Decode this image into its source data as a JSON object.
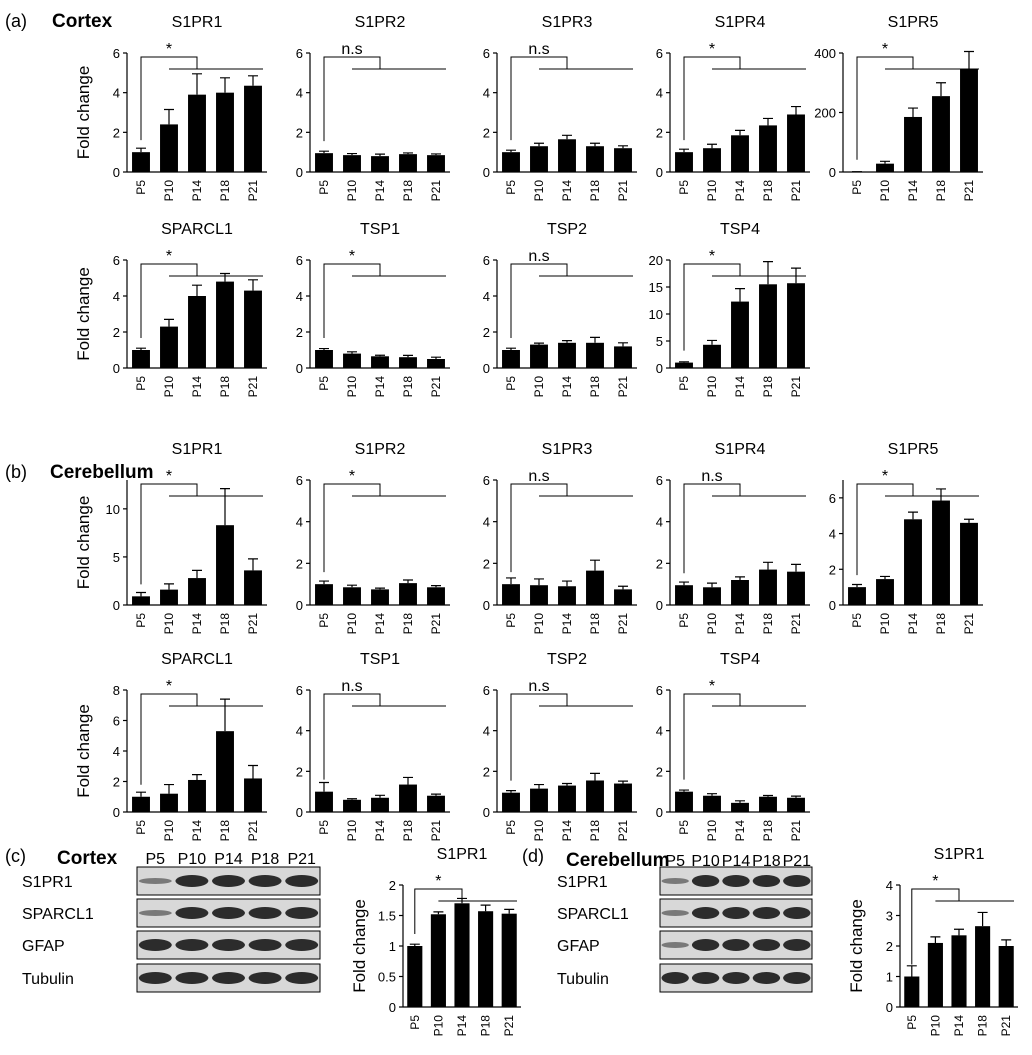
{
  "panels": [
    {
      "label": "(a)",
      "title": "Cortex"
    },
    {
      "label": "(b)",
      "title": "Cerebellum"
    },
    {
      "label": "(c)",
      "title": "Cortex"
    },
    {
      "label": "(d)",
      "title": "Cerebellum"
    }
  ],
  "blots": [
    {
      "lanes": [
        "P5",
        "P10",
        "P14",
        "P18",
        "P21"
      ],
      "rows": [
        "S1PR1",
        "SPARCL1",
        "GFAP",
        "Tubulin"
      ]
    },
    {
      "lanes": [
        "P5",
        "P10",
        "P14",
        "P18",
        "P21"
      ],
      "rows": [
        "S1PR1",
        "SPARCL1",
        "GFAP",
        "Tubulin"
      ]
    }
  ],
  "chart_data": [
    {
      "type": "bar",
      "title": "S1PR1",
      "y_label": "Fold change",
      "significance": "*",
      "categories": [
        "P5",
        "P10",
        "P14",
        "P18",
        "P21"
      ],
      "values": [
        1,
        2.4,
        3.9,
        4.0,
        4.35
      ],
      "errors": [
        0.2,
        0.75,
        1.05,
        0.75,
        0.5
      ],
      "color": "#000000",
      "ylim": [
        0,
        6
      ],
      "yticks": [
        0,
        2,
        4,
        6
      ]
    },
    {
      "type": "bar",
      "title": "S1PR2",
      "significance": "n.s",
      "categories": [
        "P5",
        "P10",
        "P14",
        "P18",
        "P21"
      ],
      "values": [
        0.95,
        0.85,
        0.8,
        0.9,
        0.85
      ],
      "errors": [
        0.1,
        0.08,
        0.1,
        0.06,
        0.06
      ],
      "color": "#000000",
      "ylim": [
        0,
        6
      ],
      "yticks": [
        0,
        2,
        4,
        6
      ]
    },
    {
      "type": "bar",
      "title": "S1PR3",
      "significance": "n.s",
      "categories": [
        "P5",
        "P10",
        "P14",
        "P18",
        "P21"
      ],
      "values": [
        1,
        1.3,
        1.65,
        1.3,
        1.2
      ],
      "errors": [
        0.1,
        0.15,
        0.2,
        0.15,
        0.12
      ],
      "color": "#000000",
      "ylim": [
        0,
        6
      ],
      "yticks": [
        0,
        2,
        4,
        6
      ]
    },
    {
      "type": "bar",
      "title": "S1PR4",
      "significance": "*",
      "categories": [
        "P5",
        "P10",
        "P14",
        "P18",
        "P21"
      ],
      "values": [
        1,
        1.2,
        1.85,
        2.35,
        2.9
      ],
      "errors": [
        0.15,
        0.2,
        0.25,
        0.35,
        0.4
      ],
      "color": "#000000",
      "ylim": [
        0,
        6
      ],
      "yticks": [
        0,
        2,
        4,
        6
      ]
    },
    {
      "type": "bar",
      "title": "S1PR5",
      "significance": "*",
      "categories": [
        "P5",
        "P10",
        "P14",
        "P18",
        "P21"
      ],
      "values": [
        1,
        28,
        185,
        255,
        345
      ],
      "errors": [
        0,
        8,
        30,
        45,
        60
      ],
      "color": "#000000",
      "ylim": [
        0,
        400
      ],
      "yticks": [
        0,
        200,
        400
      ]
    },
    {
      "type": "bar",
      "title": "SPARCL1",
      "y_label": "Fold change",
      "significance": "*",
      "categories": [
        "P5",
        "P10",
        "P14",
        "P18",
        "P21"
      ],
      "values": [
        1,
        2.3,
        4.0,
        4.8,
        4.3
      ],
      "errors": [
        0.1,
        0.4,
        0.6,
        0.45,
        0.6
      ],
      "color": "#000000",
      "ylim": [
        0,
        6
      ],
      "yticks": [
        0,
        2,
        4,
        6
      ]
    },
    {
      "type": "bar",
      "title": "TSP1",
      "significance": "*",
      "categories": [
        "P5",
        "P10",
        "P14",
        "P18",
        "P21"
      ],
      "values": [
        1,
        0.8,
        0.65,
        0.6,
        0.5
      ],
      "errors": [
        0.08,
        0.1,
        0.06,
        0.1,
        0.1
      ],
      "color": "#000000",
      "ylim": [
        0,
        6
      ],
      "yticks": [
        0,
        2,
        4,
        6
      ]
    },
    {
      "type": "bar",
      "title": "TSP2",
      "significance": "n.s",
      "categories": [
        "P5",
        "P10",
        "P14",
        "P18",
        "P21"
      ],
      "values": [
        1,
        1.3,
        1.4,
        1.4,
        1.2
      ],
      "errors": [
        0.1,
        0.08,
        0.12,
        0.3,
        0.2
      ],
      "color": "#000000",
      "ylim": [
        0,
        6
      ],
      "yticks": [
        0,
        2,
        4,
        6
      ]
    },
    {
      "type": "bar",
      "title": "TSP4",
      "significance": "*",
      "categories": [
        "P5",
        "P10",
        "P14",
        "P18",
        "P21"
      ],
      "values": [
        1,
        4.3,
        12.3,
        15.5,
        15.7
      ],
      "errors": [
        0.15,
        0.8,
        2.4,
        4.2,
        2.8
      ],
      "color": "#000000",
      "ylim": [
        0,
        20
      ],
      "yticks": [
        0,
        5,
        10,
        15,
        20
      ]
    },
    {
      "type": "bar",
      "title": "S1PR1",
      "y_label": "Fold change",
      "significance": "*",
      "categories": [
        "P5",
        "P10",
        "P14",
        "P18",
        "P21"
      ],
      "values": [
        0.9,
        1.6,
        2.8,
        8.3,
        3.6
      ],
      "errors": [
        0.4,
        0.6,
        0.8,
        3.8,
        1.2
      ],
      "color": "#000000",
      "ylim": [
        0,
        13
      ],
      "yticks": [
        0,
        5,
        10
      ]
    },
    {
      "type": "bar",
      "title": "S1PR2",
      "significance": "*",
      "categories": [
        "P5",
        "P10",
        "P14",
        "P18",
        "P21"
      ],
      "values": [
        1,
        0.85,
        0.75,
        1.05,
        0.85
      ],
      "errors": [
        0.15,
        0.1,
        0.06,
        0.15,
        0.08
      ],
      "color": "#000000",
      "ylim": [
        0,
        6
      ],
      "yticks": [
        0,
        2,
        4,
        6
      ]
    },
    {
      "type": "bar",
      "title": "S1PR3",
      "significance": "n.s",
      "categories": [
        "P5",
        "P10",
        "P14",
        "P18",
        "P21"
      ],
      "values": [
        1,
        0.95,
        0.9,
        1.65,
        0.75
      ],
      "errors": [
        0.3,
        0.3,
        0.25,
        0.5,
        0.15
      ],
      "color": "#000000",
      "ylim": [
        0,
        6
      ],
      "yticks": [
        0,
        2,
        4,
        6
      ]
    },
    {
      "type": "bar",
      "title": "S1PR4",
      "significance": "n.s",
      "categories": [
        "P5",
        "P10",
        "P14",
        "P18",
        "P21"
      ],
      "values": [
        0.95,
        0.85,
        1.2,
        1.7,
        1.6
      ],
      "errors": [
        0.15,
        0.2,
        0.15,
        0.35,
        0.35
      ],
      "color": "#000000",
      "ylim": [
        0,
        6
      ],
      "yticks": [
        0,
        2,
        4,
        6
      ]
    },
    {
      "type": "bar",
      "title": "S1PR5",
      "significance": "*",
      "categories": [
        "P5",
        "P10",
        "P14",
        "P18",
        "P21"
      ],
      "values": [
        1,
        1.45,
        4.8,
        5.85,
        4.6
      ],
      "errors": [
        0.15,
        0.15,
        0.4,
        0.65,
        0.2
      ],
      "color": "#000000",
      "ylim": [
        0,
        7
      ],
      "yticks": [
        0,
        2,
        4,
        6
      ]
    },
    {
      "type": "bar",
      "title": "SPARCL1",
      "y_label": "Fold change",
      "significance": "*",
      "categories": [
        "P5",
        "P10",
        "P14",
        "P18",
        "P21"
      ],
      "values": [
        1,
        1.2,
        2.1,
        5.3,
        2.2
      ],
      "errors": [
        0.3,
        0.6,
        0.35,
        2.1,
        0.85
      ],
      "color": "#000000",
      "ylim": [
        0,
        8
      ],
      "yticks": [
        0,
        2,
        4,
        6,
        8
      ]
    },
    {
      "type": "bar",
      "title": "TSP1",
      "significance": "n.s",
      "categories": [
        "P5",
        "P10",
        "P14",
        "P18",
        "P21"
      ],
      "values": [
        1,
        0.6,
        0.7,
        1.35,
        0.8
      ],
      "errors": [
        0.45,
        0.05,
        0.12,
        0.35,
        0.08
      ],
      "color": "#000000",
      "ylim": [
        0,
        6
      ],
      "yticks": [
        0,
        2,
        4,
        6
      ]
    },
    {
      "type": "bar",
      "title": "TSP2",
      "significance": "n.s",
      "categories": [
        "P5",
        "P10",
        "P14",
        "P18",
        "P21"
      ],
      "values": [
        0.95,
        1.15,
        1.3,
        1.55,
        1.4
      ],
      "errors": [
        0.1,
        0.2,
        0.1,
        0.35,
        0.12
      ],
      "color": "#000000",
      "ylim": [
        0,
        6
      ],
      "yticks": [
        0,
        2,
        4,
        6
      ]
    },
    {
      "type": "bar",
      "title": "TSP4",
      "significance": "*",
      "categories": [
        "P5",
        "P10",
        "P14",
        "P18",
        "P21"
      ],
      "values": [
        1,
        0.8,
        0.45,
        0.75,
        0.7
      ],
      "errors": [
        0.08,
        0.1,
        0.1,
        0.06,
        0.08
      ],
      "color": "#000000",
      "ylim": [
        0,
        6
      ],
      "yticks": [
        0,
        2,
        4,
        6
      ]
    },
    {
      "type": "bar",
      "title": "S1PR1",
      "y_label": "Fold change",
      "significance": "*",
      "categories": [
        "P5",
        "P10",
        "P14",
        "P18",
        "P21"
      ],
      "values": [
        1,
        1.52,
        1.7,
        1.57,
        1.53
      ],
      "errors": [
        0.03,
        0.04,
        0.08,
        0.1,
        0.07
      ],
      "color": "#000000",
      "ylim": [
        0,
        2
      ],
      "yticks": [
        0,
        0.5,
        1,
        1.5,
        2
      ]
    },
    {
      "type": "bar",
      "title": "S1PR1",
      "y_label": "Fold change",
      "significance": "*",
      "categories": [
        "P5",
        "P10",
        "P14",
        "P18",
        "P21"
      ],
      "values": [
        1,
        2.1,
        2.35,
        2.65,
        2.0
      ],
      "errors": [
        0.35,
        0.2,
        0.2,
        0.45,
        0.2
      ],
      "color": "#000000",
      "ylim": [
        0,
        4
      ],
      "yticks": [
        0,
        1,
        2,
        3,
        4
      ]
    }
  ]
}
